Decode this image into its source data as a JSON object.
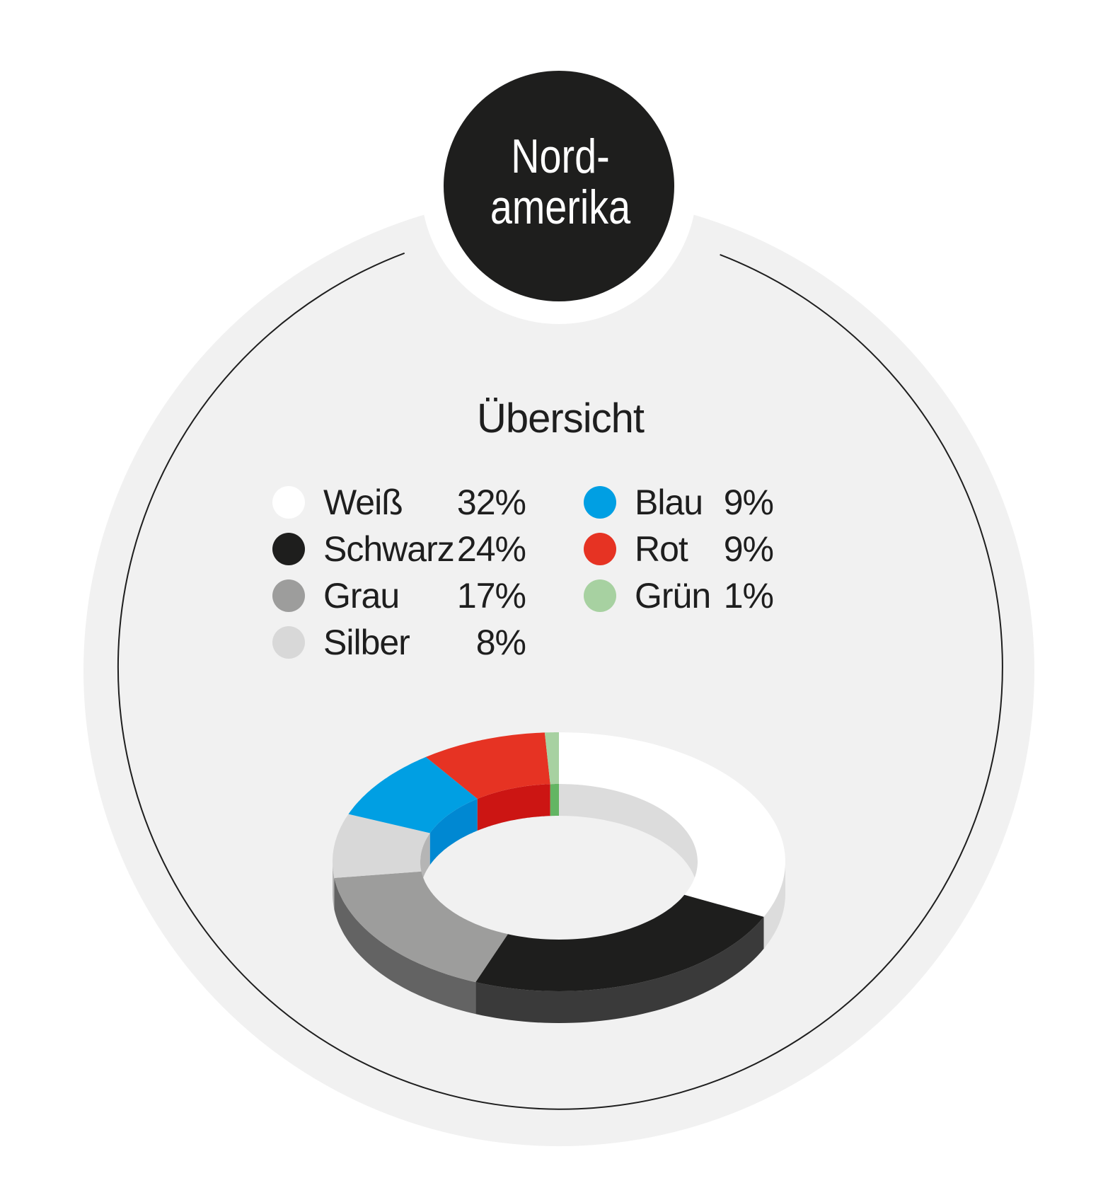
{
  "badge": {
    "line1": "Nord-",
    "line2": "amerika"
  },
  "chart_data": {
    "type": "pie",
    "subtitle": "Übersicht",
    "slices": [
      {
        "name": "Weiß",
        "value": 32,
        "label": "32%",
        "color": "#ffffff",
        "side": "#dcdcdc",
        "dot": "#ffffff"
      },
      {
        "name": "Schwarz",
        "value": 24,
        "label": "24%",
        "color": "#1e1e1d",
        "side": "#3a3a3a",
        "dot": "#1e1e1d"
      },
      {
        "name": "Grau",
        "value": 17,
        "label": "17%",
        "color": "#9d9d9c",
        "side": "#636363",
        "dot": "#9d9d9c"
      },
      {
        "name": "Silber",
        "value": 8,
        "label": "8%",
        "color": "#d8d8d8",
        "side": "#b5b5b5",
        "dot": "#d8d8d8"
      },
      {
        "name": "Blau",
        "value": 9,
        "label": "9%",
        "color": "#009fe3",
        "side": "#0088d2",
        "dot": "#009fe3"
      },
      {
        "name": "Rot",
        "value": 9,
        "label": "9%",
        "color": "#e63323",
        "side": "#cc1513",
        "dot": "#e63323"
      },
      {
        "name": "Grün",
        "value": 1,
        "label": "1%",
        "color": "#a7d1a1",
        "side": "#63b563",
        "dot": "#a7d1a1"
      }
    ]
  }
}
